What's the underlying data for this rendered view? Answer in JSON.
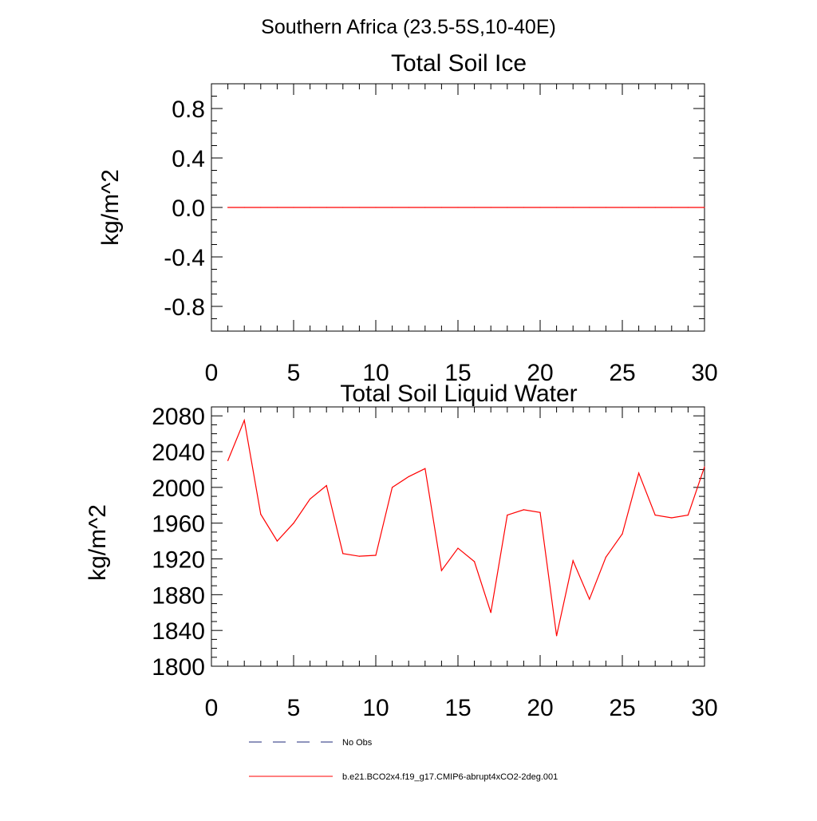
{
  "figure": {
    "suptitle": "Southern Africa (23.5-5S,10-40E)"
  },
  "legend": {
    "entries": [
      {
        "label": "No Obs",
        "style": "dashed",
        "color": "#1f2a7a"
      },
      {
        "label": "b.e21.BCO2x4.f19_g17.CMIP6-abrupt4xCO2-2deg.001",
        "style": "solid",
        "color": "#ff0000"
      }
    ]
  },
  "chart_data": [
    {
      "type": "line",
      "title": "Total Soil Ice",
      "xlabel": "",
      "ylabel": "kg/m^2",
      "xlim": [
        0,
        30
      ],
      "ylim": [
        -1.0,
        1.0
      ],
      "xticks": [
        0,
        5,
        10,
        15,
        20,
        25,
        30
      ],
      "yticks": [
        -0.8,
        -0.4,
        0.0,
        0.4,
        0.8
      ],
      "ytick_labels": [
        "-0.8",
        "-0.4",
        "0.0",
        "0.4",
        "0.8"
      ],
      "x_minor_step": 1,
      "y_minor_step": 0.1,
      "grid": false,
      "series": [
        {
          "name": "b.e21.BCO2x4.f19_g17.CMIP6-abrupt4xCO2-2deg.001",
          "color": "#ff0000",
          "x": [
            1,
            2,
            3,
            4,
            5,
            6,
            7,
            8,
            9,
            10,
            11,
            12,
            13,
            14,
            15,
            16,
            17,
            18,
            19,
            20,
            21,
            22,
            23,
            24,
            25,
            26,
            27,
            28,
            29,
            30
          ],
          "values": [
            0,
            0,
            0,
            0,
            0,
            0,
            0,
            0,
            0,
            0,
            0,
            0,
            0,
            0,
            0,
            0,
            0,
            0,
            0,
            0,
            0,
            0,
            0,
            0,
            0,
            0,
            0,
            0,
            0,
            0
          ]
        }
      ]
    },
    {
      "type": "line",
      "title": "Total Soil Liquid Water",
      "xlabel": "",
      "ylabel": "kg/m^2",
      "xlim": [
        0,
        30
      ],
      "ylim": [
        1800,
        2090
      ],
      "xticks": [
        0,
        5,
        10,
        15,
        20,
        25,
        30
      ],
      "yticks": [
        1800,
        1840,
        1880,
        1920,
        1960,
        2000,
        2040,
        2080
      ],
      "ytick_labels": [
        "1800",
        "1840",
        "1880",
        "1920",
        "1960",
        "2000",
        "2040",
        "2080"
      ],
      "x_minor_step": 1,
      "y_minor_step": 10,
      "grid": false,
      "series": [
        {
          "name": "b.e21.BCO2x4.f19_g17.CMIP6-abrupt4xCO2-2deg.001",
          "color": "#ff0000",
          "x": [
            1,
            2,
            3,
            4,
            5,
            6,
            7,
            8,
            9,
            10,
            11,
            12,
            13,
            14,
            15,
            16,
            17,
            18,
            19,
            20,
            21,
            22,
            23,
            24,
            25,
            26,
            27,
            28,
            29,
            30
          ],
          "values": [
            2030,
            2075,
            1970,
            1940,
            1960,
            1987,
            2002,
            1926,
            1923,
            1924,
            2000,
            2012,
            2021,
            1907,
            1932,
            1917,
            1860,
            1969,
            1975,
            1972,
            1834,
            1918,
            1875,
            1922,
            1948,
            2016,
            1969,
            1966,
            1969,
            2023
          ]
        }
      ]
    }
  ]
}
